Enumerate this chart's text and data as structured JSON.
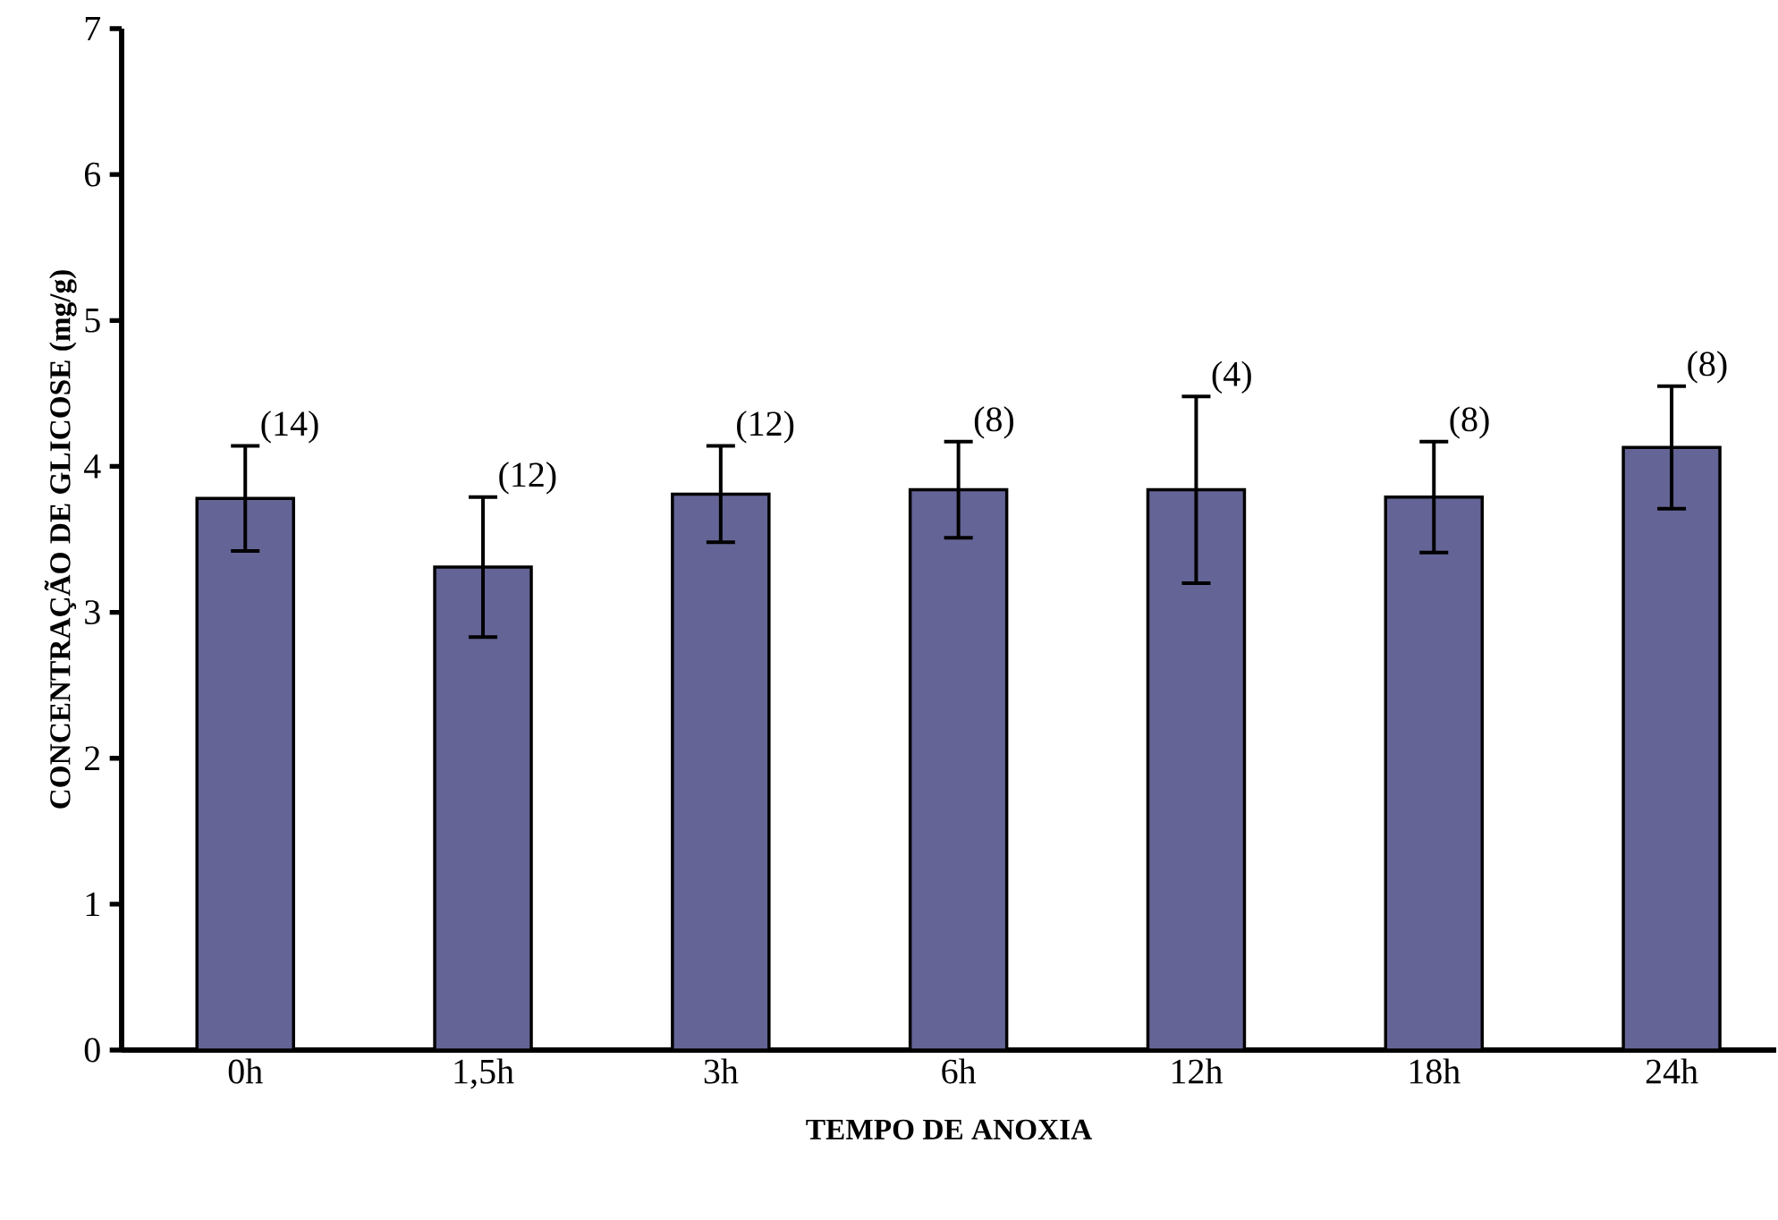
{
  "chart_data": {
    "type": "bar",
    "xlabel": "TEMPO DE ANOXIA",
    "ylabel": "CONCENTRAÇÃO DE GLICOSE (mg/g)",
    "categories": [
      "0h",
      "1,5h",
      "3h",
      "6h",
      "12h",
      "18h",
      "24h"
    ],
    "values": [
      3.78,
      3.31,
      3.81,
      3.84,
      3.84,
      3.79,
      4.13
    ],
    "errors": [
      0.36,
      0.48,
      0.33,
      0.33,
      0.64,
      0.38,
      0.42
    ],
    "color": "#646496",
    "ylim": [
      0,
      7
    ],
    "yticks": [
      0,
      1,
      2,
      3,
      4,
      5,
      6,
      7
    ],
    "grid": false,
    "annotations": [
      {
        "text": "(14)",
        "x": "0h",
        "y": 4.14
      },
      {
        "text": "(12)",
        "x": "1,5h",
        "y": 3.79
      },
      {
        "text": "(12)",
        "x": "3h",
        "y": 4.14
      },
      {
        "text": "(8)",
        "x": "6h",
        "y": 4.17
      },
      {
        "text": "(4)",
        "x": "12h",
        "y": 4.48
      },
      {
        "text": "(8)",
        "x": "18h",
        "y": 4.17
      },
      {
        "text": "(8)",
        "x": "24h",
        "y": 4.55
      }
    ]
  }
}
